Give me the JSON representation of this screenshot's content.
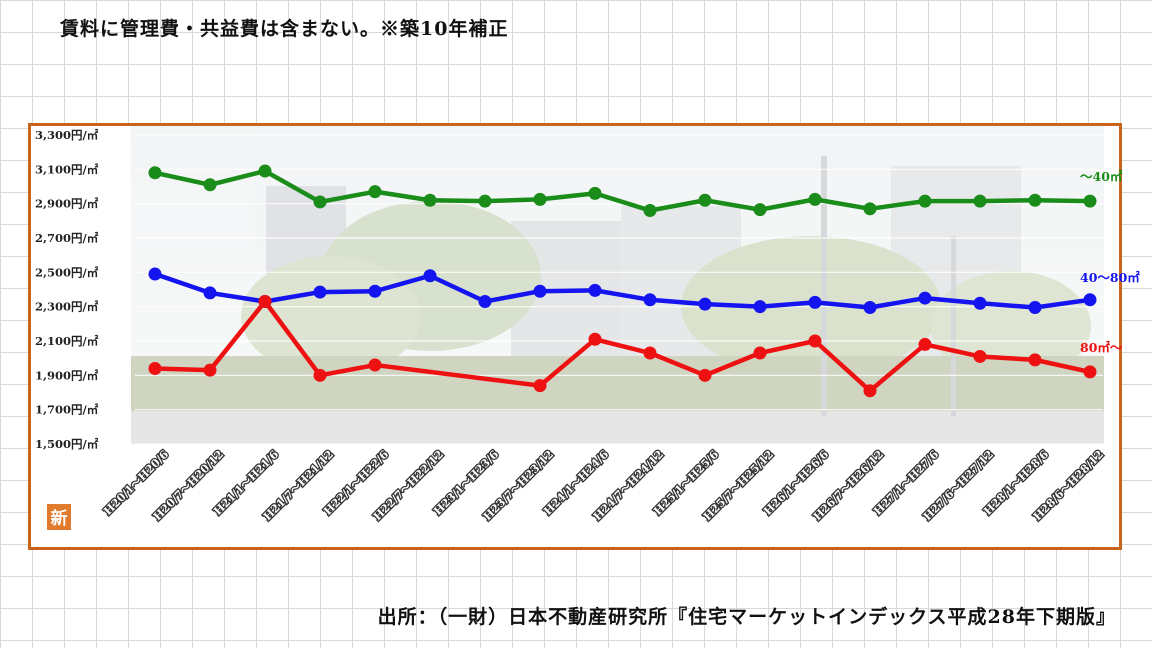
{
  "header_note": "賃料に管理費・共益費は含まない。※築10年補正",
  "source_note": "出所：（一財）日本不動産研究所『住宅マーケットインデックス平成28年下期版』",
  "badge": "新",
  "chart_data": {
    "type": "line",
    "title": "",
    "xlabel": "",
    "ylabel": "",
    "ylim": [
      1500,
      3300
    ],
    "yticks": [
      1500,
      1700,
      1900,
      2100,
      2300,
      2500,
      2700,
      2900,
      3100,
      3300
    ],
    "ytick_suffix": "円/㎡",
    "grid": true,
    "legend": "inline labels at right end of each line",
    "categories": [
      "H20/1～H20/6",
      "H20/7～H20/12",
      "H21/1～H21/6",
      "H21/7～H21/12",
      "H22/1～H22/6",
      "H22/7～H22/12",
      "H23/1～H23/6",
      "H23/7～H23/12",
      "H24/1～H24/6",
      "H24/7～H24/12",
      "H25/1～H25/6",
      "H25/7～H25/12",
      "H26/1～H26/6",
      "H26/7～H26/12",
      "H27/1～H27/6",
      "H27/6～H27/12",
      "H28/1～H28/6",
      "H28/6～H28/12"
    ],
    "series": [
      {
        "name": "～40㎡",
        "color": "#1a8c1a",
        "points": [
          [
            0,
            3080
          ],
          [
            1,
            3010
          ],
          [
            2,
            3090
          ],
          [
            3,
            2910
          ],
          [
            4,
            2970
          ],
          [
            5,
            2920
          ],
          [
            6,
            2915
          ],
          [
            7,
            2925
          ],
          [
            8,
            2960
          ],
          [
            9,
            2860
          ],
          [
            10,
            2920
          ],
          [
            11,
            2865
          ],
          [
            12,
            2925
          ],
          [
            13,
            2870
          ],
          [
            14,
            2915
          ],
          [
            15,
            2915
          ],
          [
            16,
            2920
          ],
          [
            17,
            2915
          ]
        ]
      },
      {
        "name": "40～80㎡",
        "color": "#1414f0",
        "points": [
          [
            0,
            2490
          ],
          [
            1,
            2380
          ],
          [
            2,
            2330
          ],
          [
            3,
            2385
          ],
          [
            4,
            2390
          ],
          [
            5,
            2480
          ],
          [
            6,
            2330
          ],
          [
            7,
            2390
          ],
          [
            8,
            2395
          ],
          [
            9,
            2340
          ],
          [
            10,
            2315
          ],
          [
            11,
            2300
          ],
          [
            12,
            2325
          ],
          [
            13,
            2295
          ],
          [
            14,
            2350
          ],
          [
            15,
            2320
          ],
          [
            16,
            2295
          ],
          [
            17,
            2340
          ]
        ]
      },
      {
        "name": "80㎡～",
        "color": "#ee1111",
        "points": [
          [
            0,
            1940
          ],
          [
            1,
            1930
          ],
          [
            2,
            2330
          ],
          [
            3,
            1900
          ],
          [
            4,
            1960
          ],
          [
            7,
            1840
          ],
          [
            8,
            2110
          ],
          [
            9,
            2030
          ],
          [
            10,
            1900
          ],
          [
            11,
            2030
          ],
          [
            12,
            2100
          ],
          [
            13,
            1810
          ],
          [
            14,
            2080
          ],
          [
            15,
            2010
          ],
          [
            16,
            1990
          ],
          [
            17,
            1920
          ]
        ]
      }
    ]
  }
}
